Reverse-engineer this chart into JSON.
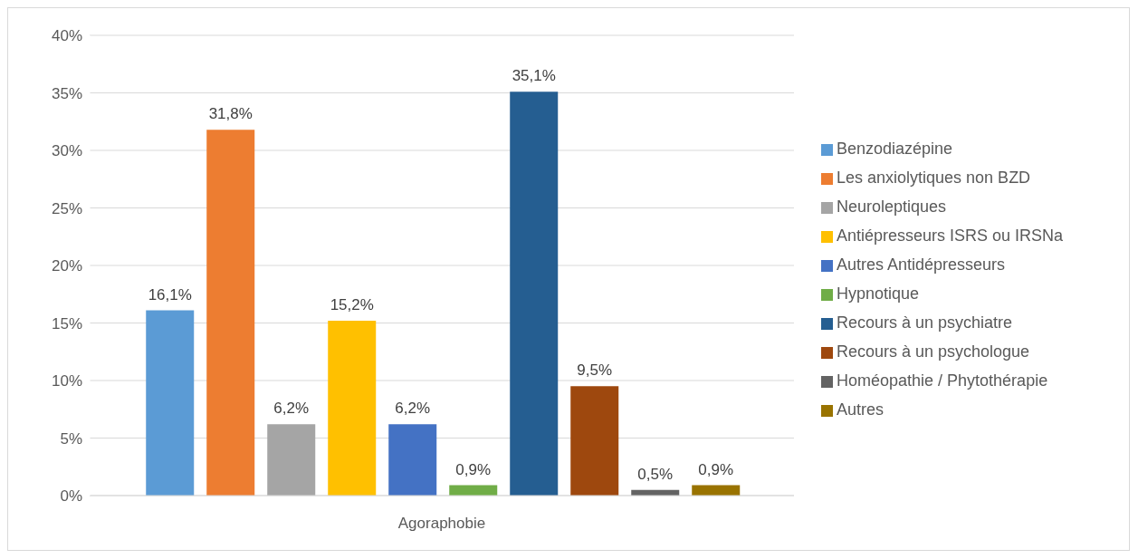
{
  "chart_data": {
    "type": "bar",
    "categories": [
      "Agoraphobie"
    ],
    "series": [
      {
        "name": "Benzodiazépine",
        "color": "#5b9bd5",
        "values": [
          16.1
        ],
        "value_labels": [
          "16,1%"
        ]
      },
      {
        "name": "Les anxiolytiques non BZD",
        "color": "#ed7d31",
        "values": [
          31.8
        ],
        "value_labels": [
          "31,8%"
        ]
      },
      {
        "name": "Neuroleptiques",
        "color": "#a5a5a5",
        "values": [
          6.2
        ],
        "value_labels": [
          "6,2%"
        ]
      },
      {
        "name": "Antiépresseurs ISRS ou IRSNa",
        "color": "#ffc000",
        "values": [
          15.2
        ],
        "value_labels": [
          "15,2%"
        ]
      },
      {
        "name": "Autres Antidépresseurs",
        "color": "#4472c4",
        "values": [
          6.2
        ],
        "value_labels": [
          "6,2%"
        ]
      },
      {
        "name": "Hypnotique",
        "color": "#70ad47",
        "values": [
          0.9
        ],
        "value_labels": [
          "0,9%"
        ]
      },
      {
        "name": "Recours à un psychiatre",
        "color": "#255e91",
        "values": [
          35.1
        ],
        "value_labels": [
          "35,1%"
        ]
      },
      {
        "name": "Recours à un psychologue",
        "color": "#9e480e",
        "values": [
          9.5
        ],
        "value_labels": [
          "9,5%"
        ]
      },
      {
        "name": "Homéopathie / Phytothérapie",
        "color": "#636363",
        "values": [
          0.5
        ],
        "value_labels": [
          "0,5%"
        ]
      },
      {
        "name": "Autres",
        "color": "#997300",
        "values": [
          0.9
        ],
        "value_labels": [
          "0,9%"
        ]
      }
    ],
    "ylim": [
      0,
      40
    ],
    "yticks": [
      {
        "value": 0,
        "label": "0%"
      },
      {
        "value": 5,
        "label": "5%"
      },
      {
        "value": 10,
        "label": "10%"
      },
      {
        "value": 15,
        "label": "15%"
      },
      {
        "value": 20,
        "label": "20%"
      },
      {
        "value": 25,
        "label": "25%"
      },
      {
        "value": 30,
        "label": "30%"
      },
      {
        "value": 35,
        "label": "35%"
      },
      {
        "value": 40,
        "label": "40%"
      }
    ],
    "grid": "y",
    "legend": "right"
  }
}
